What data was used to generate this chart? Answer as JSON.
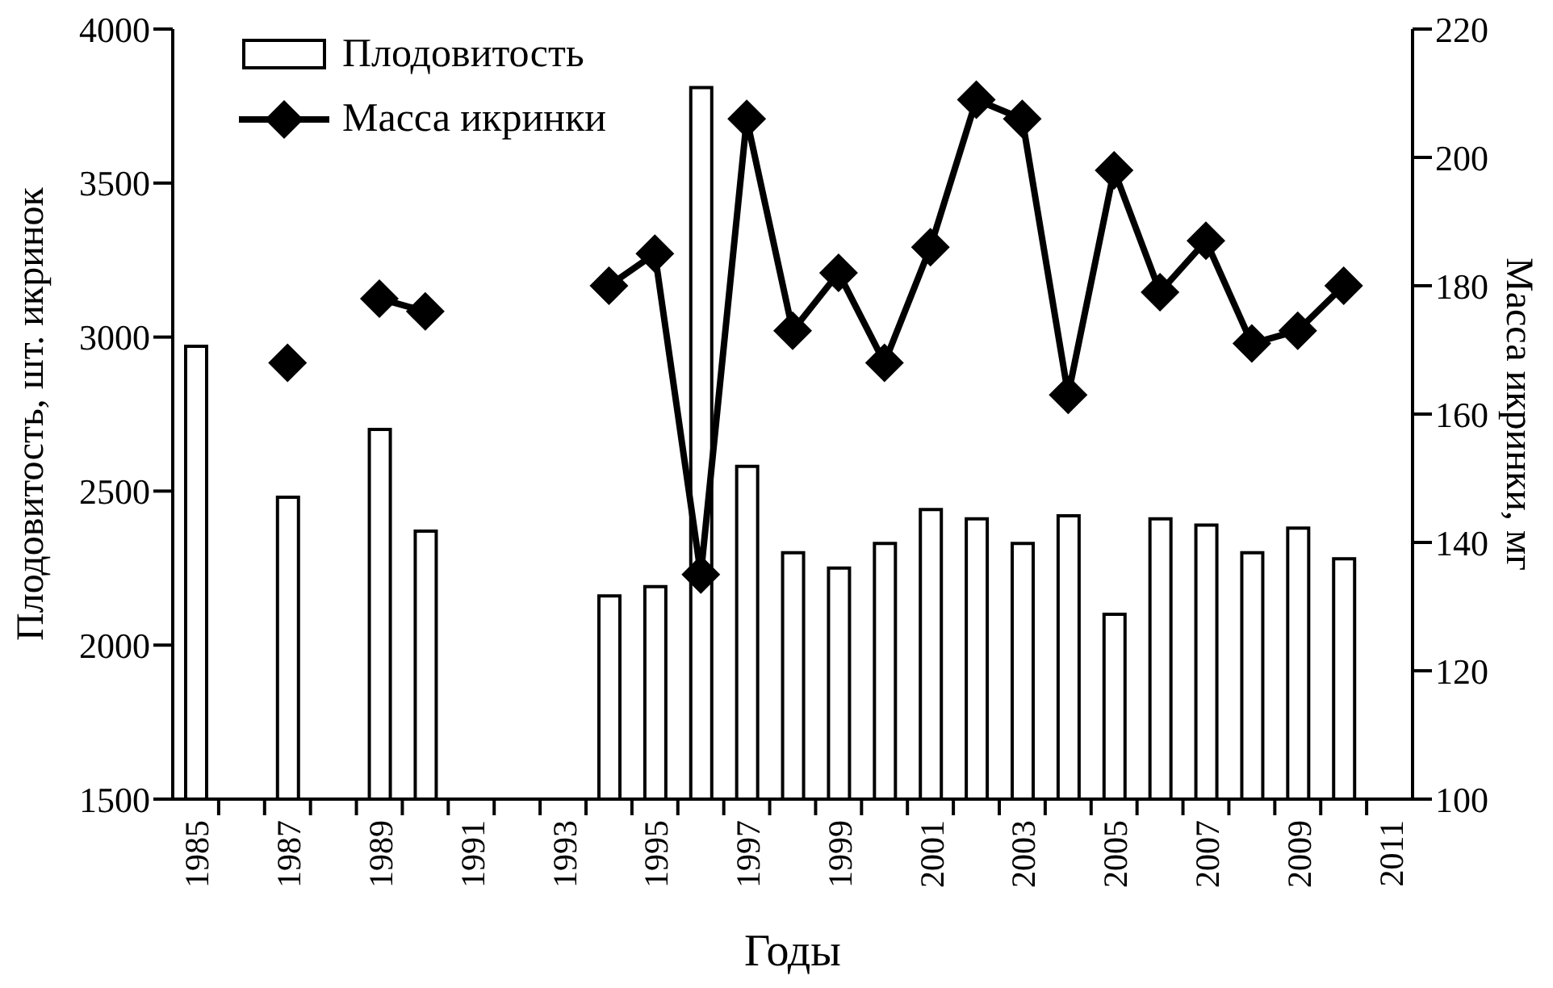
{
  "chart_data": {
    "type": "bar",
    "xlabel": "Годы",
    "ylabel": "Плодовитость, шт. икринок",
    "y2label": "Масса икринки, мг",
    "x": [
      1985,
      1986,
      1987,
      1988,
      1989,
      1990,
      1991,
      1992,
      1993,
      1994,
      1995,
      1996,
      1997,
      1998,
      1999,
      2000,
      2001,
      2002,
      2003,
      2004,
      2005,
      2006,
      2007,
      2008,
      2009,
      2010
    ],
    "series": [
      {
        "name": "Плодовитость",
        "color": "#ffffff",
        "values": [
          2970,
          null,
          2480,
          null,
          2700,
          2370,
          null,
          null,
          null,
          2160,
          2190,
          3810,
          2580,
          2300,
          2250,
          2330,
          2440,
          2410,
          2330,
          2420,
          2100,
          2410,
          2390,
          2300,
          2380,
          2280
        ]
      },
      {
        "name": "Масса икринки",
        "type": "line",
        "axis": "y2",
        "color": "#000000",
        "marker": "diamond",
        "values": [
          null,
          null,
          168,
          null,
          178,
          176,
          null,
          null,
          null,
          180,
          185,
          135,
          206,
          173,
          182,
          168,
          186,
          209,
          206,
          163,
          198,
          179,
          187,
          171,
          173,
          180
        ]
      }
    ],
    "xlim": [
      1984.5,
      2011.5
    ],
    "xticks": [
      1985,
      1987,
      1989,
      1991,
      1993,
      1995,
      1997,
      1999,
      2001,
      2003,
      2005,
      2007,
      2009,
      2011,
      {
        "value": 1985.5,
        "label": null
      },
      {
        "value": 1986.5,
        "label": null
      },
      {
        "value": 1987.5,
        "label": null
      },
      {
        "value": 1988.5,
        "label": null
      },
      {
        "value": 1989.5,
        "label": null
      },
      {
        "value": 1990.5,
        "label": null
      },
      {
        "value": 1991.5,
        "label": null
      },
      {
        "value": 1992.5,
        "label": null
      },
      {
        "value": 1993.5,
        "label": null
      },
      {
        "value": 1994.5,
        "label": null
      },
      {
        "value": 1995.5,
        "label": null
      },
      {
        "value": 1996.5,
        "label": null
      },
      {
        "value": 1997.5,
        "label": null
      },
      {
        "value": 1998.5,
        "label": null
      },
      {
        "value": 1999.5,
        "label": null
      },
      {
        "value": 2000.5,
        "label": null
      },
      {
        "value": 2001.5,
        "label": null
      },
      {
        "value": 2002.5,
        "label": null
      },
      {
        "value": 2003.5,
        "label": null
      },
      {
        "value": 2004.5,
        "label": null
      },
      {
        "value": 2005.5,
        "label": null
      },
      {
        "value": 2006.5,
        "label": null
      },
      {
        "value": 2007.5,
        "label": null
      },
      {
        "value": 2008.5,
        "label": null
      },
      {
        "value": 2009.5,
        "label": null
      },
      {
        "value": 2010.5,
        "label": null
      }
    ],
    "ylim": [
      1500,
      4000
    ],
    "yticks": [
      1500,
      2000,
      2500,
      3000,
      3500,
      4000
    ],
    "y2lim": [
      100,
      220
    ],
    "y2ticks": [
      100,
      120,
      140,
      160,
      180,
      200,
      220
    ],
    "grid": false,
    "legend": "top left"
  }
}
